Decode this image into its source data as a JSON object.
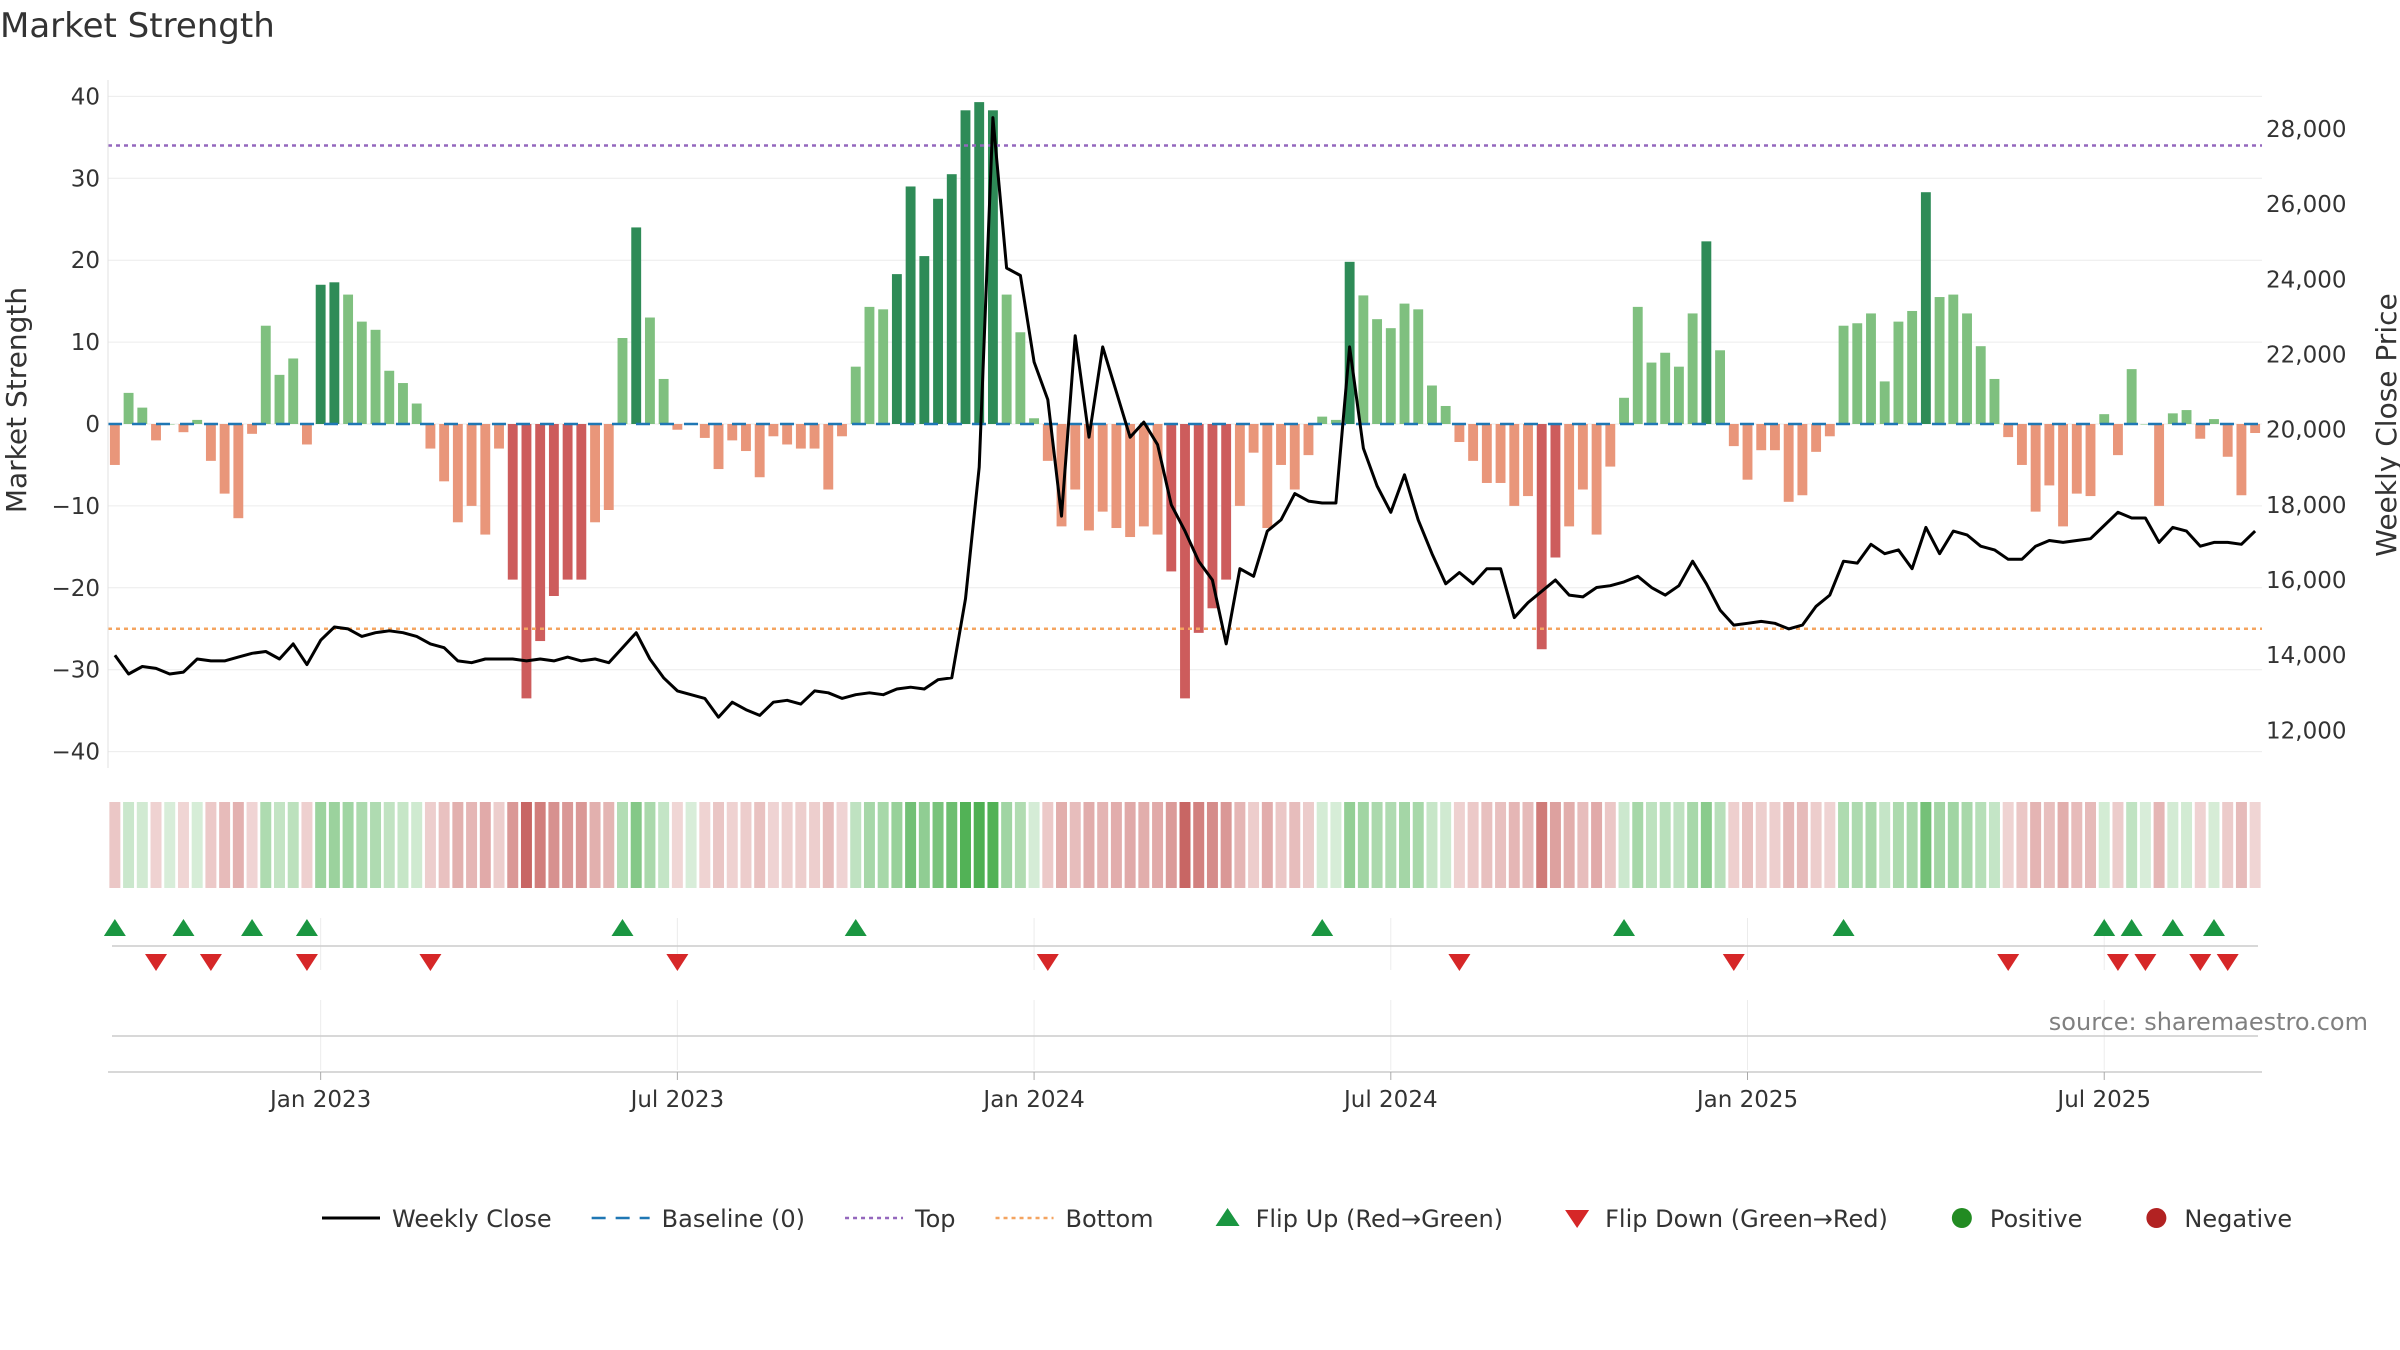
{
  "title": "Market Strength",
  "source": "source: sharemaestro.com",
  "chart_data": {
    "type": "bar",
    "ylabel": "Market Strength",
    "y2label": "Weekly Close Price",
    "ylim": [
      -42,
      42
    ],
    "y2lim": [
      11000,
      29300
    ],
    "yticks": [
      40,
      30,
      20,
      10,
      0,
      -10,
      -20,
      -30,
      -40
    ],
    "y2ticks": [
      {
        "v": 28000,
        "label": "28,000"
      },
      {
        "v": 26000,
        "label": "26,000"
      },
      {
        "v": 24000,
        "label": "24,000"
      },
      {
        "v": 22000,
        "label": "22,000"
      },
      {
        "v": 20000,
        "label": "20,000"
      },
      {
        "v": 18000,
        "label": "18,000"
      },
      {
        "v": 16000,
        "label": "16,000"
      },
      {
        "v": 14000,
        "label": "14,000"
      },
      {
        "v": 12000,
        "label": "12,000"
      }
    ],
    "xticks": [
      {
        "index": 15,
        "label": "Jan 2023"
      },
      {
        "index": 41,
        "label": "Jul 2023"
      },
      {
        "index": 67,
        "label": "Jan 2024"
      },
      {
        "index": 93,
        "label": "Jul 2024"
      },
      {
        "index": 119,
        "label": "Jan 2025"
      },
      {
        "index": 145,
        "label": "Jul 2025"
      }
    ],
    "top_level": 34,
    "bottom_level": -25,
    "strength": [
      -5,
      3.8,
      2,
      -2,
      0,
      -1,
      0.5,
      -4.5,
      -8.5,
      -11.5,
      -1.2,
      12,
      6,
      8,
      -2.5,
      17,
      17.3,
      15.8,
      12.5,
      11.5,
      6.5,
      5,
      2.5,
      -3,
      -7,
      -12,
      -10,
      -13.5,
      -3,
      -19,
      -33.5,
      -26.5,
      -21,
      -19,
      -19,
      -12,
      -10.5,
      10.5,
      24,
      13,
      5.5,
      -0.7,
      0,
      -1.7,
      -5.5,
      -2,
      -3.3,
      -6.5,
      -1.5,
      -2.5,
      -3,
      -3,
      -8,
      -1.5,
      7,
      14.3,
      14,
      18.3,
      29,
      20.5,
      27.5,
      30.5,
      38.3,
      39.3,
      38.3,
      15.8,
      11.2,
      0.7,
      -4.5,
      -12.5,
      -8,
      -13,
      -10.7,
      -12.7,
      -13.8,
      -12.5,
      -13.5,
      -18,
      -33.5,
      -25.5,
      -22.5,
      -19,
      -10,
      -3.5,
      -12.7,
      -5,
      -8,
      -3.8,
      0.9,
      0.5,
      19.8,
      15.7,
      12.8,
      11.7,
      14.7,
      14,
      4.7,
      2.2,
      -2.2,
      -4.5,
      -7.2,
      -7.2,
      -10,
      -8.8,
      -27.5,
      -16.3,
      -12.5,
      -8,
      -13.5,
      -5.2,
      3.2,
      14.3,
      7.5,
      8.7,
      7,
      13.5,
      22.3,
      9,
      -2.7,
      -6.8,
      -3.2,
      -3.2,
      -9.5,
      -8.7,
      -3.4,
      -1.5,
      12,
      12.3,
      13.5,
      5.2,
      12.5,
      13.8,
      28.3,
      15.5,
      15.8,
      13.5,
      9.5,
      5.5,
      -1.6,
      -5,
      -10.7,
      -7.5,
      -12.5,
      -8.5,
      -8.8,
      1.2,
      -3.8,
      6.7,
      0,
      -10,
      1.3,
      1.7,
      -1.8,
      0.6,
      -4,
      -8.7,
      -1.1
    ],
    "close": [
      14000,
      13500,
      13700,
      13650,
      13500,
      13550,
      13900,
      13850,
      13850,
      13950,
      14050,
      14100,
      13900,
      14300,
      13750,
      14400,
      14750,
      14700,
      14500,
      14600,
      14650,
      14600,
      14500,
      14300,
      14200,
      13850,
      13800,
      13900,
      13900,
      13900,
      13850,
      13900,
      13850,
      13950,
      13850,
      13900,
      13800,
      14200,
      14600,
      13900,
      13400,
      13050,
      12950,
      12850,
      12350,
      12750,
      12550,
      12400,
      12750,
      12800,
      12700,
      13050,
      13000,
      12850,
      12950,
      13000,
      12950,
      13100,
      13150,
      13100,
      13350,
      13400,
      15500,
      19000,
      28300,
      24300,
      24100,
      21800,
      20800,
      17700,
      22500,
      19800,
      22200,
      21000,
      19800,
      20200,
      19600,
      18000,
      17300,
      16500,
      16000,
      14300,
      16300,
      16100,
      17300,
      17600,
      18300,
      18100,
      18050,
      18050,
      22200,
      19500,
      18500,
      17800,
      18800,
      17600,
      16700,
      15900,
      16200,
      15900,
      16300,
      16300,
      15000,
      15400,
      15700,
      16000,
      15600,
      15550,
      15800,
      15850,
      15950,
      16100,
      15800,
      15600,
      15850,
      16500,
      15900,
      15200,
      14800,
      14850,
      14900,
      14850,
      14700,
      14800,
      15300,
      15600,
      16500,
      16450,
      16950,
      16700,
      16800,
      16300,
      17400,
      16700,
      17300,
      17200,
      16900,
      16800,
      16550,
      16550,
      16900,
      17050,
      17000,
      17050,
      17100,
      17450,
      17800,
      17650,
      17650,
      17000,
      17400,
      17300,
      16900,
      17000,
      17000,
      16950,
      17300
    ],
    "flip_up_index": [
      0,
      5,
      10,
      14,
      37,
      54,
      88,
      110,
      126,
      145,
      147,
      150,
      153
    ],
    "flip_down_index": [
      3,
      7,
      14,
      23,
      41,
      68,
      98,
      118,
      138,
      146,
      148,
      152,
      154
    ],
    "colors": {
      "strong_green": "#2e8b57",
      "light_green": "#7fc07f",
      "strong_red": "#cd5c5c",
      "light_red": "#e9967a",
      "line": "#000000",
      "baseline": "#1f77b4",
      "top": "#9467bd",
      "bottom": "#f4a460",
      "flip_up": "#1a9641",
      "flip_down": "#d62728",
      "positive": "#228b22",
      "negative": "#b22222"
    },
    "legend": [
      {
        "label": "Weekly Close",
        "kind": "line"
      },
      {
        "label": "Baseline (0)",
        "kind": "dash"
      },
      {
        "label": "Top",
        "kind": "dot-top"
      },
      {
        "label": "Bottom",
        "kind": "dot-bottom"
      },
      {
        "label": "Flip Up (Red→Green)",
        "kind": "tri-up"
      },
      {
        "label": "Flip Down (Green→Red)",
        "kind": "tri-down"
      },
      {
        "label": "Positive",
        "kind": "circle-pos"
      },
      {
        "label": "Negative",
        "kind": "circle-neg"
      }
    ]
  }
}
